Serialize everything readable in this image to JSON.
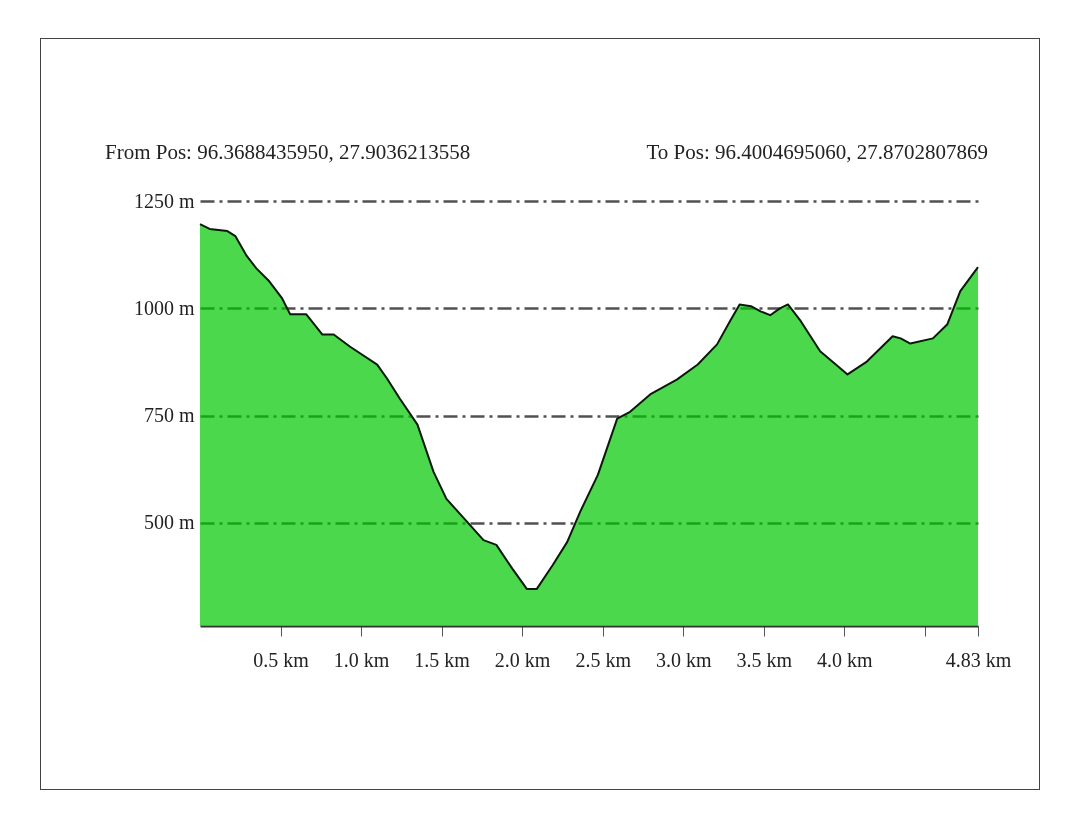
{
  "chart_data": {
    "type": "area",
    "annotations": [
      "From Pos: 96.3688435950, 27.9036213558",
      "To Pos: 96.4004695060, 27.8702807869"
    ],
    "x": [
      0,
      0.06,
      0.17,
      0.22,
      0.29,
      0.35,
      0.43,
      0.51,
      0.56,
      0.66,
      0.76,
      0.83,
      0.93,
      1.1,
      1.16,
      1.24,
      1.35,
      1.45,
      1.53,
      1.66,
      1.76,
      1.84,
      1.94,
      2.03,
      2.09,
      2.19,
      2.28,
      2.36,
      2.47,
      2.59,
      2.67,
      2.8,
      2.96,
      3.09,
      3.21,
      3.29,
      3.35,
      3.42,
      3.48,
      3.54,
      3.6,
      3.65,
      3.73,
      3.85,
      3.96,
      4.02,
      4.14,
      4.3,
      4.35,
      4.41,
      4.55,
      4.64,
      4.72,
      4.83
    ],
    "series": [
      {
        "color": "#00c800",
        "values": [
          1196,
          1185,
          1180,
          1168,
          1122,
          1093,
          1063,
          1023,
          986,
          986,
          939,
          939,
          911,
          869,
          837,
          790,
          729,
          619,
          556,
          502,
          460,
          449,
          393,
          346,
          346,
          402,
          456,
          526,
          612,
          743,
          759,
          801,
          834,
          869,
          916,
          970,
          1009,
          1005,
          993,
          984,
          1000,
          1009,
          970,
          900,
          865,
          846,
          876,
          935,
          930,
          918,
          930,
          963,
          1040,
          1096
        ]
      }
    ],
    "xlim": [
      0,
      4.83
    ],
    "xticks": [
      {
        "value": 0.5,
        "label": "0.5 km"
      },
      {
        "value": 1.0,
        "label": "1.0 km"
      },
      {
        "value": 1.5,
        "label": "1.5 km"
      },
      {
        "value": 2.0,
        "label": "2.0 km"
      },
      {
        "value": 2.5,
        "label": "2.5 km"
      },
      {
        "value": 3.0,
        "label": "3.0 km"
      },
      {
        "value": 3.5,
        "label": "3.5 km"
      },
      {
        "value": 4.0,
        "label": "4.0 km"
      },
      {
        "value": 4.5,
        "label": null
      },
      {
        "value": 4.83,
        "label": "4.83 km"
      }
    ],
    "ylim": [
      260,
      1250
    ],
    "yticks": [
      {
        "value": 500,
        "label": "500 m"
      },
      {
        "value": 750,
        "label": "750 m"
      },
      {
        "value": 1000,
        "label": "1000 m"
      },
      {
        "value": 1250,
        "label": "1250 m"
      }
    ],
    "grid": "y"
  }
}
